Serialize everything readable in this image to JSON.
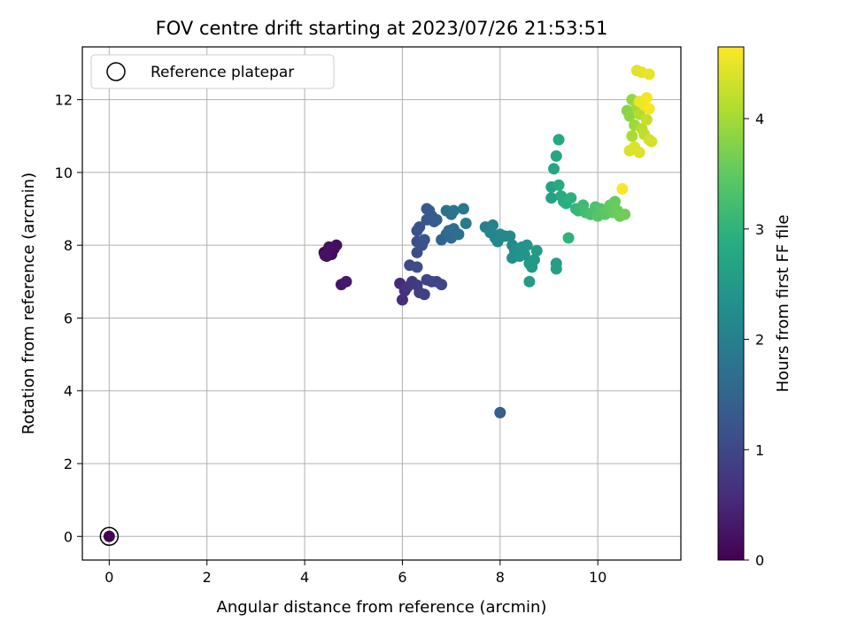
{
  "chart_data": {
    "type": "scatter",
    "title": "FOV centre drift starting at 2023/07/26 21:53:51",
    "xlabel": "Angular distance from reference (arcmin)",
    "ylabel": "Rotation from reference (arcmin)",
    "xlim": [
      -0.55,
      11.7
    ],
    "ylim": [
      -0.65,
      13.45
    ],
    "x_ticks": [
      0,
      2,
      4,
      6,
      8,
      10
    ],
    "y_ticks": [
      0,
      2,
      4,
      6,
      8,
      10,
      12
    ],
    "grid": true,
    "legend": {
      "placement": "top-left",
      "entries": [
        "Reference platepar"
      ]
    },
    "reference_point": {
      "x": 0,
      "y": 0
    },
    "colorbar": {
      "label": "Hours from first FF file",
      "range": [
        0,
        4.65
      ],
      "ticks": [
        0,
        1,
        2,
        3,
        4
      ],
      "colormap": "viridis"
    },
    "series": [
      {
        "values": [
          {
            "x": 0.0,
            "y": 0.0,
            "c": 0.0
          },
          {
            "x": 4.4,
            "y": 7.8,
            "c": 0.05
          },
          {
            "x": 4.45,
            "y": 7.7,
            "c": 0.08
          },
          {
            "x": 4.5,
            "y": 7.85,
            "c": 0.1
          },
          {
            "x": 4.55,
            "y": 7.75,
            "c": 0.12
          },
          {
            "x": 4.6,
            "y": 7.9,
            "c": 0.15
          },
          {
            "x": 4.65,
            "y": 8.0,
            "c": 0.18
          },
          {
            "x": 4.5,
            "y": 7.95,
            "c": 0.2
          },
          {
            "x": 4.42,
            "y": 7.72,
            "c": 0.22
          },
          {
            "x": 4.75,
            "y": 6.92,
            "c": 0.28
          },
          {
            "x": 4.85,
            "y": 7.0,
            "c": 0.3
          },
          {
            "x": 5.95,
            "y": 6.95,
            "c": 0.55
          },
          {
            "x": 6.0,
            "y": 6.5,
            "c": 0.6
          },
          {
            "x": 6.05,
            "y": 6.75,
            "c": 0.65
          },
          {
            "x": 6.1,
            "y": 6.85,
            "c": 0.7
          },
          {
            "x": 6.2,
            "y": 7.0,
            "c": 0.75
          },
          {
            "x": 6.3,
            "y": 6.9,
            "c": 0.8
          },
          {
            "x": 6.35,
            "y": 6.7,
            "c": 0.85
          },
          {
            "x": 6.45,
            "y": 6.65,
            "c": 0.9
          },
          {
            "x": 6.5,
            "y": 7.05,
            "c": 0.92
          },
          {
            "x": 6.6,
            "y": 7.0,
            "c": 0.95
          },
          {
            "x": 6.7,
            "y": 7.0,
            "c": 0.97
          },
          {
            "x": 6.8,
            "y": 6.92,
            "c": 1.0
          },
          {
            "x": 6.15,
            "y": 7.45,
            "c": 1.05
          },
          {
            "x": 6.3,
            "y": 7.4,
            "c": 1.08
          },
          {
            "x": 6.3,
            "y": 7.8,
            "c": 1.1
          },
          {
            "x": 6.3,
            "y": 8.1,
            "c": 1.12
          },
          {
            "x": 6.3,
            "y": 8.4,
            "c": 1.15
          },
          {
            "x": 6.35,
            "y": 8.5,
            "c": 1.18
          },
          {
            "x": 6.4,
            "y": 8.0,
            "c": 1.2
          },
          {
            "x": 6.45,
            "y": 8.15,
            "c": 1.22
          },
          {
            "x": 6.5,
            "y": 8.7,
            "c": 1.25
          },
          {
            "x": 6.5,
            "y": 9.0,
            "c": 1.28
          },
          {
            "x": 6.55,
            "y": 8.95,
            "c": 1.3
          },
          {
            "x": 6.6,
            "y": 8.8,
            "c": 1.32
          },
          {
            "x": 6.65,
            "y": 8.65,
            "c": 1.35
          },
          {
            "x": 6.7,
            "y": 8.7,
            "c": 1.38
          },
          {
            "x": 8.0,
            "y": 3.4,
            "c": 1.4
          },
          {
            "x": 6.8,
            "y": 8.15,
            "c": 1.5
          },
          {
            "x": 6.9,
            "y": 8.3,
            "c": 1.55
          },
          {
            "x": 6.95,
            "y": 8.4,
            "c": 1.6
          },
          {
            "x": 7.0,
            "y": 8.2,
            "c": 1.62
          },
          {
            "x": 7.05,
            "y": 8.45,
            "c": 1.65
          },
          {
            "x": 7.15,
            "y": 8.3,
            "c": 1.68
          },
          {
            "x": 6.9,
            "y": 8.95,
            "c": 1.72
          },
          {
            "x": 7.0,
            "y": 8.85,
            "c": 1.75
          },
          {
            "x": 7.05,
            "y": 8.95,
            "c": 1.78
          },
          {
            "x": 7.25,
            "y": 9.0,
            "c": 1.85
          },
          {
            "x": 7.3,
            "y": 8.6,
            "c": 1.9
          },
          {
            "x": 7.7,
            "y": 8.5,
            "c": 2.0
          },
          {
            "x": 7.85,
            "y": 8.55,
            "c": 2.05
          },
          {
            "x": 7.8,
            "y": 8.35,
            "c": 2.08
          },
          {
            "x": 7.9,
            "y": 8.2,
            "c": 2.1
          },
          {
            "x": 7.95,
            "y": 8.1,
            "c": 2.12
          },
          {
            "x": 8.0,
            "y": 8.3,
            "c": 2.15
          },
          {
            "x": 8.1,
            "y": 8.25,
            "c": 2.18
          },
          {
            "x": 8.2,
            "y": 8.25,
            "c": 2.2
          },
          {
            "x": 8.25,
            "y": 8.0,
            "c": 2.22
          },
          {
            "x": 8.3,
            "y": 7.85,
            "c": 2.25
          },
          {
            "x": 8.25,
            "y": 7.65,
            "c": 2.28
          },
          {
            "x": 8.35,
            "y": 7.9,
            "c": 2.3
          },
          {
            "x": 8.4,
            "y": 7.7,
            "c": 2.35
          },
          {
            "x": 8.45,
            "y": 7.95,
            "c": 2.38
          },
          {
            "x": 8.5,
            "y": 7.75,
            "c": 2.4
          },
          {
            "x": 8.55,
            "y": 8.0,
            "c": 2.42
          },
          {
            "x": 8.6,
            "y": 7.5,
            "c": 2.45
          },
          {
            "x": 8.65,
            "y": 7.4,
            "c": 2.48
          },
          {
            "x": 8.7,
            "y": 7.6,
            "c": 2.5
          },
          {
            "x": 8.75,
            "y": 7.85,
            "c": 2.52
          },
          {
            "x": 8.6,
            "y": 7.0,
            "c": 2.55
          },
          {
            "x": 9.15,
            "y": 7.5,
            "c": 2.58
          },
          {
            "x": 9.15,
            "y": 7.35,
            "c": 2.6
          },
          {
            "x": 9.05,
            "y": 9.3,
            "c": 2.65
          },
          {
            "x": 9.05,
            "y": 9.6,
            "c": 2.68
          },
          {
            "x": 9.1,
            "y": 10.1,
            "c": 2.72
          },
          {
            "x": 9.15,
            "y": 10.45,
            "c": 2.75
          },
          {
            "x": 9.2,
            "y": 10.9,
            "c": 2.78
          },
          {
            "x": 9.2,
            "y": 9.65,
            "c": 2.82
          },
          {
            "x": 9.25,
            "y": 9.35,
            "c": 2.85
          },
          {
            "x": 9.3,
            "y": 9.2,
            "c": 2.88
          },
          {
            "x": 9.35,
            "y": 9.15,
            "c": 2.9
          },
          {
            "x": 9.45,
            "y": 9.3,
            "c": 2.95
          },
          {
            "x": 9.4,
            "y": 8.2,
            "c": 3.0
          },
          {
            "x": 9.55,
            "y": 9.0,
            "c": 3.05
          },
          {
            "x": 9.6,
            "y": 8.95,
            "c": 3.1
          },
          {
            "x": 9.7,
            "y": 9.1,
            "c": 3.15
          },
          {
            "x": 9.75,
            "y": 8.9,
            "c": 3.2
          },
          {
            "x": 9.85,
            "y": 8.85,
            "c": 3.25
          },
          {
            "x": 9.95,
            "y": 9.05,
            "c": 3.3
          },
          {
            "x": 10.05,
            "y": 9.0,
            "c": 3.35
          },
          {
            "x": 10.0,
            "y": 8.8,
            "c": 3.4
          },
          {
            "x": 10.1,
            "y": 8.9,
            "c": 3.42
          },
          {
            "x": 10.15,
            "y": 8.85,
            "c": 3.45
          },
          {
            "x": 10.2,
            "y": 9.0,
            "c": 3.48
          },
          {
            "x": 10.25,
            "y": 9.1,
            "c": 3.5
          },
          {
            "x": 10.3,
            "y": 8.9,
            "c": 3.52
          },
          {
            "x": 10.35,
            "y": 9.2,
            "c": 3.55
          },
          {
            "x": 10.4,
            "y": 8.95,
            "c": 3.58
          },
          {
            "x": 10.45,
            "y": 8.8,
            "c": 3.6
          },
          {
            "x": 10.55,
            "y": 8.85,
            "c": 3.62
          },
          {
            "x": 10.6,
            "y": 11.7,
            "c": 3.8
          },
          {
            "x": 10.65,
            "y": 11.55,
            "c": 3.85
          },
          {
            "x": 10.7,
            "y": 12.0,
            "c": 3.9
          },
          {
            "x": 10.75,
            "y": 11.3,
            "c": 3.95
          },
          {
            "x": 10.8,
            "y": 11.8,
            "c": 4.0
          },
          {
            "x": 10.7,
            "y": 11.0,
            "c": 4.05
          },
          {
            "x": 10.85,
            "y": 11.6,
            "c": 4.1
          },
          {
            "x": 10.9,
            "y": 11.2,
            "c": 4.15
          },
          {
            "x": 10.95,
            "y": 11.05,
            "c": 4.2
          },
          {
            "x": 11.0,
            "y": 11.45,
            "c": 4.25
          },
          {
            "x": 11.05,
            "y": 10.9,
            "c": 4.3
          },
          {
            "x": 11.1,
            "y": 10.85,
            "c": 4.35
          },
          {
            "x": 10.65,
            "y": 10.6,
            "c": 4.38
          },
          {
            "x": 10.75,
            "y": 10.7,
            "c": 4.4
          },
          {
            "x": 10.85,
            "y": 10.55,
            "c": 4.42
          },
          {
            "x": 10.8,
            "y": 12.8,
            "c": 4.45
          },
          {
            "x": 10.9,
            "y": 12.75,
            "c": 4.48
          },
          {
            "x": 11.05,
            "y": 12.7,
            "c": 4.5
          },
          {
            "x": 10.85,
            "y": 11.95,
            "c": 4.52
          },
          {
            "x": 10.95,
            "y": 11.85,
            "c": 4.55
          },
          {
            "x": 11.0,
            "y": 12.05,
            "c": 4.58
          },
          {
            "x": 11.05,
            "y": 11.75,
            "c": 4.6
          },
          {
            "x": 10.5,
            "y": 9.55,
            "c": 4.62
          }
        ]
      }
    ]
  }
}
